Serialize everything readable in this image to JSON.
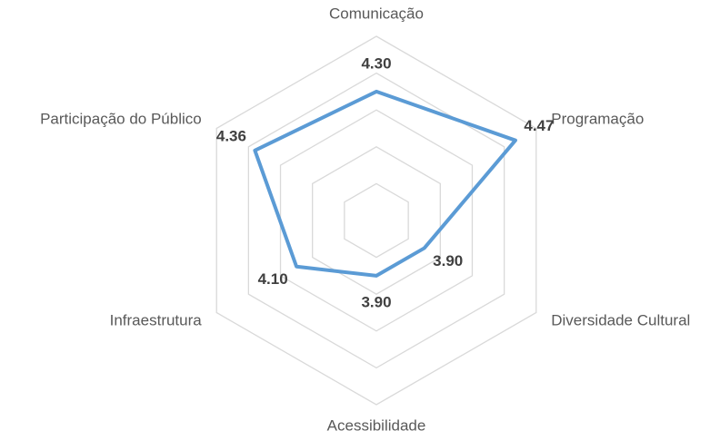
{
  "chart_data": {
    "type": "radar",
    "categories": [
      "Comunicação",
      "Programação",
      "Diversidade Cultural",
      "Acessibilidade",
      "Infraestrutura",
      "Participação do Público"
    ],
    "values": [
      4.3,
      4.47,
      3.9,
      3.9,
      4.1,
      4.36
    ],
    "value_labels": [
      "4.30",
      "4.47",
      "3.90",
      "3.90",
      "4.10",
      "4.36"
    ],
    "color": "#5b9bd5",
    "rlim": [
      3.6,
      4.6
    ],
    "rticks": [
      3.8,
      4.0,
      4.2,
      4.4,
      4.6
    ],
    "grid": true
  }
}
